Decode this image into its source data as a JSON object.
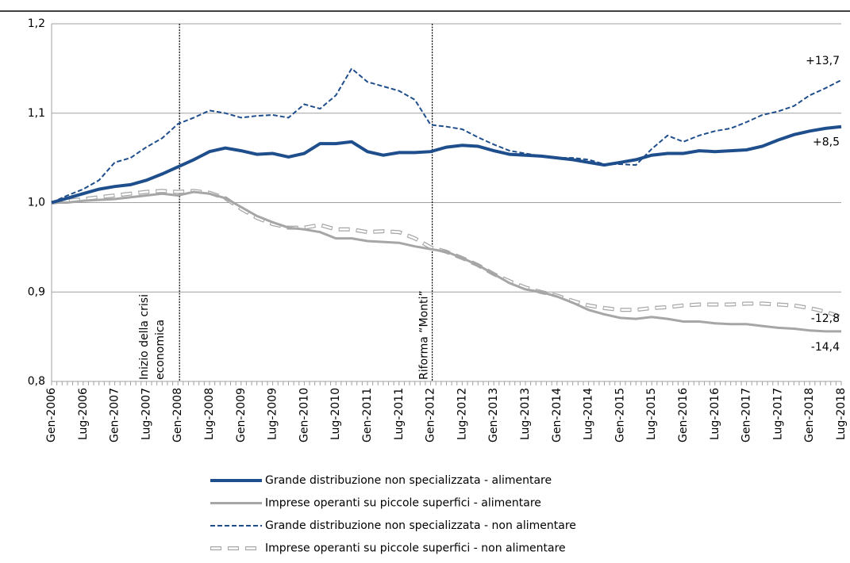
{
  "chart_data": {
    "type": "line",
    "categories": [
      "Gen-2006",
      null,
      "Lug-2006",
      null,
      "Gen-2007",
      null,
      "Lug-2007",
      null,
      "Gen-2008",
      null,
      "Lug-2008",
      null,
      "Gen-2009",
      null,
      "Lug-2009",
      null,
      "Gen-2010",
      null,
      "Lug-2010",
      null,
      "Gen-2011",
      null,
      "Lug-2011",
      null,
      "Gen-2012",
      null,
      "Lug-2012",
      null,
      "Gen-2013",
      null,
      "Lug-2013",
      null,
      "Gen-2014",
      null,
      "Lug-2014",
      null,
      "Gen-2015",
      null,
      "Lug-2015",
      null,
      "Gen-2016",
      null,
      "Lug-2016",
      null,
      "Gen-2017",
      null,
      "Lug-2017",
      null,
      "Gen-2018",
      null,
      "Lug-2018"
    ],
    "ylim": [
      0.8,
      1.2
    ],
    "yticks": [
      {
        "value": 0.8,
        "label": "0,8"
      },
      {
        "value": 0.9,
        "label": "0,9"
      },
      {
        "value": 1.0,
        "label": "1,0"
      },
      {
        "value": 1.1,
        "label": "1,1"
      },
      {
        "value": 1.2,
        "label": "1,2"
      }
    ],
    "grid": true,
    "series": [
      {
        "name": "Grande distribuzione non specializzata - alimentare",
        "color": "#1f4e8c",
        "style": "solid",
        "end_label": "+8,5",
        "values": [
          1.0,
          1.005,
          1.01,
          1.015,
          1.018,
          1.02,
          1.025,
          1.032,
          1.04,
          1.048,
          1.057,
          1.061,
          1.058,
          1.054,
          1.055,
          1.051,
          1.055,
          1.066,
          1.066,
          1.068,
          1.057,
          1.053,
          1.056,
          1.056,
          1.057,
          1.062,
          1.064,
          1.063,
          1.058,
          1.054,
          1.053,
          1.052,
          1.05,
          1.048,
          1.045,
          1.042,
          1.045,
          1.048,
          1.053,
          1.055,
          1.055,
          1.058,
          1.057,
          1.058,
          1.059,
          1.063,
          1.07,
          1.076,
          1.08,
          1.083,
          1.085
        ]
      },
      {
        "name": "Imprese operanti su piccole superfici - alimentare",
        "color": "#a6a6a6",
        "style": "solid",
        "end_label": "-14,4",
        "values": [
          1.0,
          1.0,
          1.002,
          1.003,
          1.004,
          1.006,
          1.008,
          1.01,
          1.008,
          1.012,
          1.01,
          1.005,
          0.995,
          0.985,
          0.978,
          0.972,
          0.97,
          0.967,
          0.96,
          0.96,
          0.957,
          0.956,
          0.955,
          0.951,
          0.948,
          0.945,
          0.938,
          0.93,
          0.92,
          0.91,
          0.903,
          0.9,
          0.895,
          0.888,
          0.88,
          0.875,
          0.871,
          0.87,
          0.872,
          0.87,
          0.867,
          0.867,
          0.865,
          0.864,
          0.864,
          0.862,
          0.86,
          0.859,
          0.857,
          0.856,
          0.856
        ]
      },
      {
        "name": "Grande distribuzione non specializzata - non alimentare",
        "color": "#1f4e8c",
        "style": "dashed",
        "end_label": "+13,7",
        "values": [
          1.0,
          1.008,
          1.015,
          1.025,
          1.045,
          1.05,
          1.062,
          1.072,
          1.088,
          1.095,
          1.103,
          1.1,
          1.095,
          1.097,
          1.098,
          1.095,
          1.11,
          1.105,
          1.12,
          1.15,
          1.135,
          1.13,
          1.125,
          1.115,
          1.087,
          1.085,
          1.082,
          1.073,
          1.065,
          1.058,
          1.055,
          1.052,
          1.05,
          1.05,
          1.048,
          1.043,
          1.043,
          1.042,
          1.06,
          1.075,
          1.068,
          1.075,
          1.08,
          1.083,
          1.09,
          1.098,
          1.102,
          1.108,
          1.12,
          1.128,
          1.137
        ]
      },
      {
        "name": "Imprese operanti su piccole superfici - non alimentare",
        "color": "#a6a6a6",
        "style": "hollow",
        "end_label": "-12,8",
        "values": [
          1.0,
          1.002,
          1.004,
          1.006,
          1.008,
          1.01,
          1.012,
          1.013,
          1.012,
          1.013,
          1.011,
          1.005,
          0.993,
          0.983,
          0.976,
          0.972,
          0.972,
          0.975,
          0.97,
          0.97,
          0.967,
          0.968,
          0.967,
          0.96,
          0.95,
          0.945,
          0.938,
          0.93,
          0.92,
          0.912,
          0.905,
          0.9,
          0.896,
          0.89,
          0.885,
          0.882,
          0.88,
          0.88,
          0.882,
          0.883,
          0.885,
          0.886,
          0.886,
          0.886,
          0.887,
          0.887,
          0.886,
          0.885,
          0.882,
          0.878,
          0.872
        ]
      }
    ],
    "events": [
      {
        "category": "Gen-2008",
        "label": [
          "Inizio della crisi",
          "economica"
        ]
      },
      {
        "category": "Gen-2012",
        "label": [
          "Riforma “Monti”"
        ]
      }
    ]
  }
}
